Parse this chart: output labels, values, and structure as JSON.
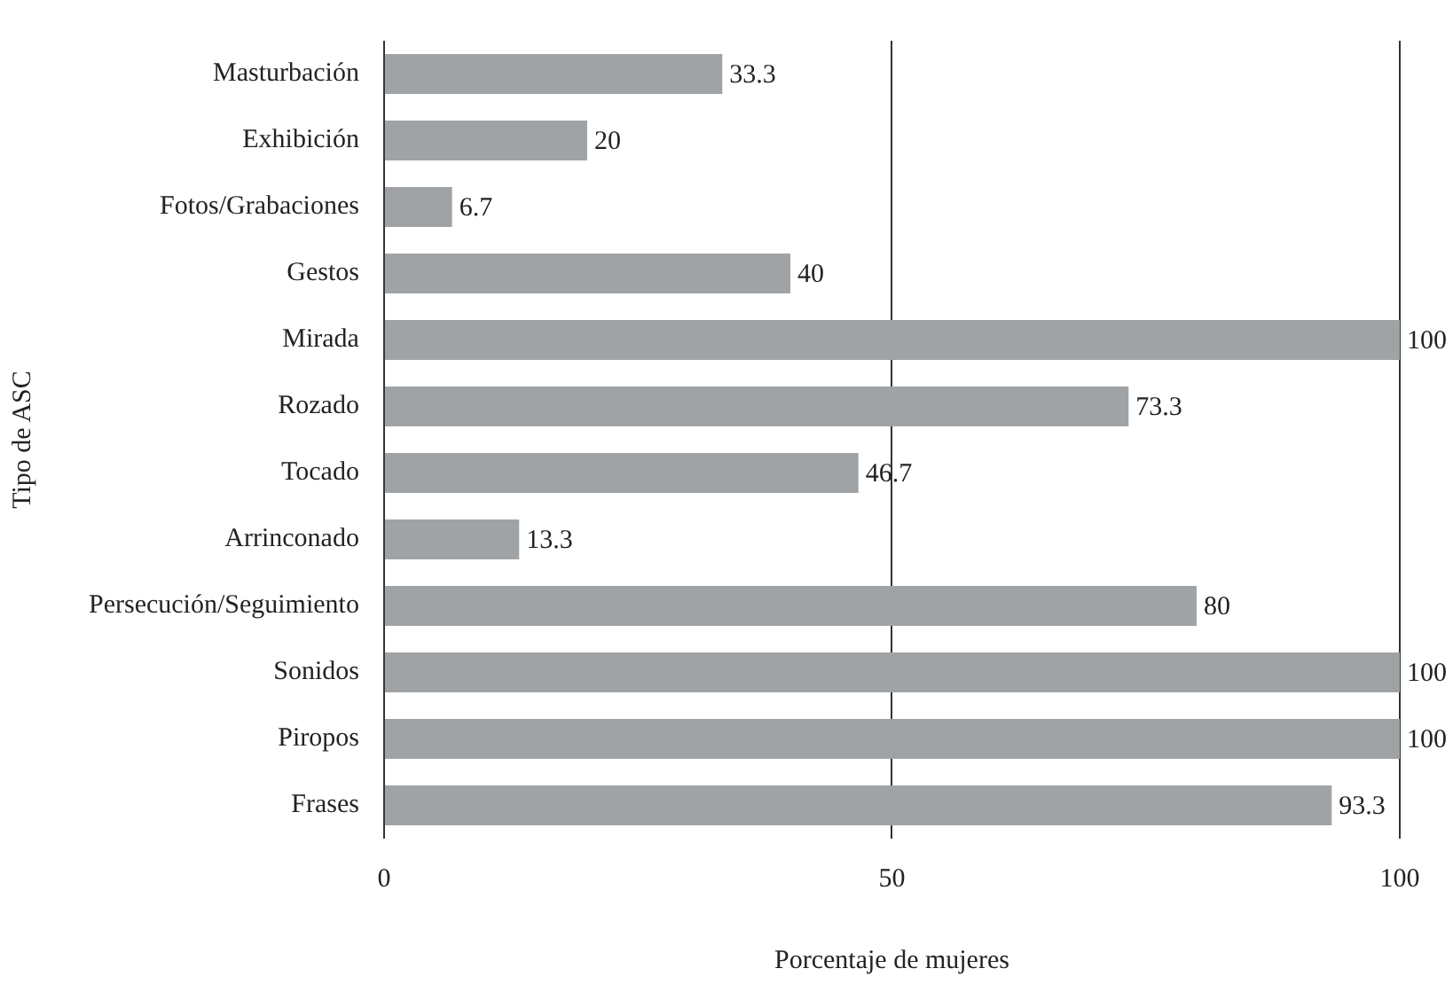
{
  "chart_data": {
    "type": "bar",
    "orientation": "horizontal",
    "xlabel": "Porcentaje de mujeres",
    "ylabel": "Tipo de ASC",
    "categories": [
      "Masturbación",
      "Exhibición",
      "Fotos/Grabaciones",
      "Gestos",
      "Mirada",
      "Rozado",
      "Tocado",
      "Arrinconado",
      "Persecución/Seguimiento",
      "Sonidos",
      "Piropos",
      "Frases"
    ],
    "values": [
      33.3,
      20,
      6.7,
      40,
      100,
      73.3,
      46.7,
      13.3,
      80,
      100,
      100,
      93.3
    ],
    "color": "#a0a3a6",
    "xlim": [
      0,
      100
    ],
    "xticks": [
      0,
      50,
      100
    ],
    "grid": "x",
    "data_labels": true,
    "legend": false
  }
}
